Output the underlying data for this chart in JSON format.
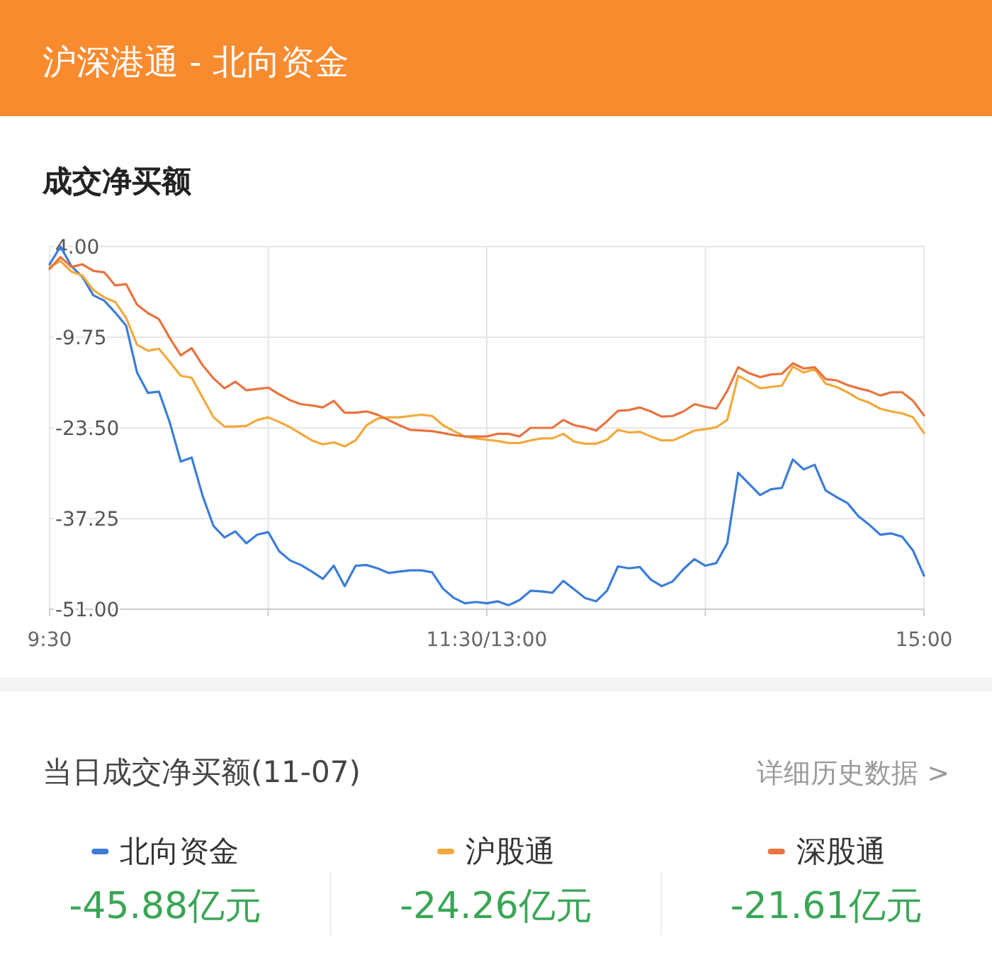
{
  "chart_data": {
    "type": "line",
    "title": "沪深港通 - 北向资金",
    "subtitle": "成交净买额",
    "categories": [
      "9:30",
      null,
      null,
      null,
      null,
      null,
      null,
      null,
      null,
      null,
      null,
      null,
      null,
      null,
      null,
      null,
      null,
      null,
      null,
      null,
      null,
      null,
      null,
      null,
      null,
      null,
      null,
      null,
      null,
      null,
      null,
      null,
      null,
      null,
      null,
      null,
      null,
      null,
      null,
      null,
      "11:30/13:00",
      null,
      null,
      null,
      null,
      null,
      null,
      null,
      null,
      null,
      null,
      null,
      null,
      null,
      null,
      null,
      null,
      null,
      null,
      null,
      null,
      null,
      null,
      null,
      null,
      null,
      null,
      null,
      null,
      null,
      null,
      null,
      null,
      null,
      null,
      null,
      null,
      null,
      null,
      null,
      "15:00"
    ],
    "ylim": [
      -51,
      4
    ],
    "yticks": [
      {
        "value": 4,
        "label": "4.00"
      },
      {
        "value": -9.75,
        "label": "-9.75"
      },
      {
        "value": -23.5,
        "label": "-23.50"
      },
      {
        "value": -37.25,
        "label": "-37.25"
      },
      {
        "value": -51,
        "label": "-51.00"
      }
    ],
    "grid": true,
    "legend": "bottom",
    "series": [
      {
        "name": "北向资金",
        "color": "#3b7dd8",
        "values": [
          1.3,
          4.0,
          1.0,
          -0.6,
          -3.4,
          -4.2,
          -6.0,
          -8.0,
          -15.1,
          -18.2,
          -18.0,
          -22.7,
          -28.6,
          -28.0,
          -33.8,
          -38.4,
          -40.1,
          -39.2,
          -41.0,
          -39.7,
          -39.3,
          -42.2,
          -43.6,
          -44.3,
          -45.3,
          -46.4,
          -44.4,
          -47.5,
          -44.4,
          -44.3,
          -44.8,
          -45.5,
          -45.3,
          -45.1,
          -45.1,
          -45.4,
          -47.9,
          -49.3,
          -50.1,
          -49.9,
          -50.1,
          -49.8,
          -50.4,
          -49.6,
          -48.2,
          -48.3,
          -48.5,
          -46.7,
          -48.0,
          -49.3,
          -49.8,
          -48.2,
          -44.5,
          -44.8,
          -44.6,
          -46.5,
          -47.5,
          -46.8,
          -44.9,
          -43.4,
          -44.4,
          -44.0,
          -41.0,
          -30.3,
          -32.0,
          -33.7,
          -32.8,
          -32.6,
          -28.3,
          -29.8,
          -29.1,
          -33.0,
          -34.0,
          -34.9,
          -36.9,
          -38.2,
          -39.7,
          -39.5,
          -40.0,
          -42.1,
          -45.9
        ]
      },
      {
        "name": "沪股通",
        "color": "#f2a93b",
        "values": [
          0.9,
          1.8,
          0.2,
          -0.4,
          -2.6,
          -3.7,
          -4.4,
          -6.8,
          -10.9,
          -11.8,
          -11.5,
          -13.5,
          -15.6,
          -15.9,
          -18.9,
          -21.9,
          -23.3,
          -23.3,
          -23.2,
          -22.3,
          -21.9,
          -22.6,
          -23.4,
          -24.4,
          -25.4,
          -26.0,
          -25.7,
          -26.3,
          -25.4,
          -23.1,
          -22.1,
          -21.9,
          -21.9,
          -21.7,
          -21.5,
          -21.7,
          -23.1,
          -24.0,
          -24.8,
          -25.1,
          -25.3,
          -25.5,
          -25.8,
          -25.8,
          -25.4,
          -25.1,
          -25.1,
          -24.4,
          -25.6,
          -25.9,
          -25.9,
          -25.3,
          -23.8,
          -24.2,
          -24.1,
          -24.8,
          -25.4,
          -25.4,
          -24.7,
          -23.9,
          -23.7,
          -23.4,
          -22.3,
          -15.6,
          -16.5,
          -17.5,
          -17.3,
          -17.1,
          -14.2,
          -15.1,
          -14.6,
          -16.8,
          -17.3,
          -18.1,
          -19.1,
          -19.7,
          -20.6,
          -21.0,
          -21.3,
          -21.9,
          -24.3
        ]
      },
      {
        "name": "深股通",
        "color": "#e8733f",
        "values": [
          0.6,
          2.4,
          0.9,
          1.3,
          0.3,
          0.1,
          -1.9,
          -1.7,
          -4.8,
          -6.1,
          -7.0,
          -9.9,
          -12.5,
          -11.4,
          -14.0,
          -16.0,
          -17.5,
          -16.5,
          -17.8,
          -17.6,
          -17.4,
          -18.4,
          -19.3,
          -19.9,
          -20.1,
          -20.4,
          -19.4,
          -21.2,
          -21.2,
          -21.0,
          -21.5,
          -22.3,
          -23.1,
          -23.8,
          -23.9,
          -24.0,
          -24.3,
          -24.6,
          -24.8,
          -24.8,
          -24.8,
          -24.4,
          -24.4,
          -24.8,
          -23.5,
          -23.5,
          -23.5,
          -22.3,
          -23.1,
          -23.4,
          -23.9,
          -22.5,
          -20.9,
          -20.8,
          -20.4,
          -21.0,
          -21.8,
          -21.7,
          -21.0,
          -19.9,
          -20.3,
          -20.6,
          -17.9,
          -14.3,
          -15.2,
          -15.8,
          -15.4,
          -15.3,
          -13.7,
          -14.5,
          -14.3,
          -16.1,
          -16.3,
          -17.0,
          -17.5,
          -17.9,
          -18.6,
          -18.1,
          -18.1,
          -19.4,
          -21.6
        ]
      }
    ],
    "annotations": [
      "当日成交净买额(11-07)",
      "详细历史数据 >",
      "-45.88亿元",
      "-24.26亿元",
      "-21.61亿元"
    ]
  }
}
